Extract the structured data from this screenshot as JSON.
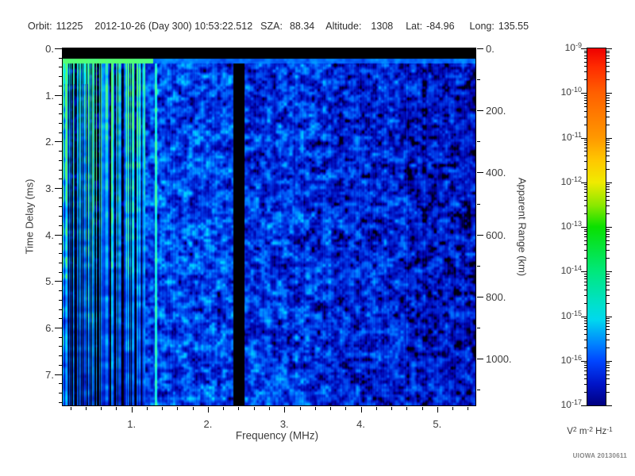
{
  "header": {
    "fields": [
      {
        "label": "Orbit:",
        "value": "11225"
      },
      {
        "label": "",
        "value": "2012-10-26 (Day 300) 10:53:22.512"
      },
      {
        "label": "SZA:",
        "value": "88.34"
      },
      {
        "label": "Altitude:",
        "value": "1308"
      },
      {
        "label": "Lat:",
        "value": "-84.96"
      },
      {
        "label": "Long:",
        "value": "135.55"
      }
    ]
  },
  "credit": "UIOWA 20130611",
  "chart_data": {
    "type": "heatmap",
    "title": "",
    "xlabel": "Frequency (MHz)",
    "ylabel": "Time Delay (ms)",
    "x_axis": {
      "label": "Frequency (MHz)",
      "min_mhz": 0.1,
      "max_mhz": 5.5,
      "major_ticks": [
        {
          "value": 1,
          "label": "1."
        },
        {
          "value": 2,
          "label": "2."
        },
        {
          "value": 3,
          "label": "3."
        },
        {
          "value": 4,
          "label": "4."
        },
        {
          "value": 5,
          "label": "5."
        }
      ],
      "minor_step_mhz": 0.2
    },
    "y_left": {
      "label": "Time Delay (ms)",
      "min_ms": 0,
      "max_ms": 7.67,
      "major_ticks": [
        {
          "value": 0,
          "label": "0."
        },
        {
          "value": 1,
          "label": "1."
        },
        {
          "value": 2,
          "label": "2."
        },
        {
          "value": 3,
          "label": "3."
        },
        {
          "value": 4,
          "label": "4."
        },
        {
          "value": 5,
          "label": "5."
        },
        {
          "value": 6,
          "label": "6."
        },
        {
          "value": 7,
          "label": "7."
        }
      ],
      "minor_step_ms": 0.2
    },
    "y_right": {
      "label": "Apparent Range (km)",
      "km_per_ms": 150,
      "max_km": 1150,
      "major_ticks": [
        {
          "value": 0,
          "label": "0."
        },
        {
          "value": 200,
          "label": "200."
        },
        {
          "value": 400,
          "label": "400."
        },
        {
          "value": 600,
          "label": "600."
        },
        {
          "value": 800,
          "label": "800."
        },
        {
          "value": 1000,
          "label": "1000."
        }
      ],
      "minor_step_km": 100
    },
    "colorbar": {
      "scale": "log",
      "top_exponent": -9,
      "bottom_exponent": -17,
      "ticks": [
        {
          "base": "10",
          "exp": "-9"
        },
        {
          "base": "10",
          "exp": "-10"
        },
        {
          "base": "10",
          "exp": "-11"
        },
        {
          "base": "10",
          "exp": "-12"
        },
        {
          "base": "10",
          "exp": "-13"
        },
        {
          "base": "10",
          "exp": "-14"
        },
        {
          "base": "10",
          "exp": "-15"
        },
        {
          "base": "10",
          "exp": "-16"
        },
        {
          "base": "10",
          "exp": "-17"
        }
      ],
      "unit_parts": [
        {
          "t": "V"
        },
        {
          "t": "2",
          "sup": true
        },
        {
          "t": " m"
        },
        {
          "t": "-2",
          "sup": true
        },
        {
          "t": " Hz"
        },
        {
          "t": "-1",
          "sup": true
        }
      ],
      "gradient_stops": [
        {
          "pos": 0.0,
          "color": "#ee0000"
        },
        {
          "pos": 0.05,
          "color": "#ff2a00"
        },
        {
          "pos": 0.125,
          "color": "#ff6000"
        },
        {
          "pos": 0.25,
          "color": "#ff9800"
        },
        {
          "pos": 0.315,
          "color": "#ffc800"
        },
        {
          "pos": 0.375,
          "color": "#f0ea00"
        },
        {
          "pos": 0.44,
          "color": "#8ae800"
        },
        {
          "pos": 0.5,
          "color": "#0ae000"
        },
        {
          "pos": 0.625,
          "color": "#00e87c"
        },
        {
          "pos": 0.72,
          "color": "#00e0ce"
        },
        {
          "pos": 0.76,
          "color": "#00d8ee"
        },
        {
          "pos": 0.83,
          "color": "#0080ff"
        },
        {
          "pos": 0.875,
          "color": "#0046ff"
        },
        {
          "pos": 0.94,
          "color": "#0014c8"
        },
        {
          "pos": 1.0,
          "color": "#000080"
        }
      ]
    },
    "spectrogram": {
      "seed": 20130611,
      "freq_min": 0.1,
      "freq_max": 5.5,
      "noise_cells": [
        7,
        3.5
      ],
      "colormap": [
        {
          "v": 0.0,
          "c": "#000000"
        },
        {
          "v": 0.14,
          "c": "#000018"
        },
        {
          "v": 0.24,
          "c": "#0000a8"
        },
        {
          "v": 0.4,
          "c": "#0030e0"
        },
        {
          "v": 0.56,
          "c": "#0070ff"
        },
        {
          "v": 0.7,
          "c": "#00b2ff"
        },
        {
          "v": 0.82,
          "c": "#00e4ff"
        },
        {
          "v": 0.92,
          "c": "#3dffa8"
        },
        {
          "v": 1.0,
          "c": "#5aff66"
        }
      ],
      "top_black_rows": 13,
      "bright_band": {
        "rows": [
          13,
          19
        ],
        "green_f_max": 1.28,
        "green_v": 0.96,
        "blue_base": 0.4,
        "blue_amp": 0.3
      },
      "stripes": {
        "f_max": 1.18,
        "gap_prob": 0.25,
        "base": 0.2,
        "amp": 1.05,
        "fade_bottom": 0.5,
        "top_green": {
          "f_max": 0.58,
          "t_frac_max": 0.1,
          "v": 0.92
        }
      },
      "regions": [
        {
          "f0": 1.18,
          "f1": 2.33,
          "base": 0.14,
          "amp": 0.72
        },
        {
          "f0": 2.47,
          "f1": 3.6,
          "base": 0.12,
          "amp": 0.68
        },
        {
          "f0": 3.6,
          "f1": 4.6,
          "base": 0.08,
          "amp": 0.64
        },
        {
          "f0": 4.6,
          "f1": 5.5,
          "base": 0.05,
          "amp": 0.6
        }
      ],
      "black_band": {
        "f0": 2.33,
        "f1": 2.47,
        "dot_threshold": 0.95,
        "dot_v": 0.6
      },
      "cyan_line": {
        "f0": 1.295,
        "f1": 1.33,
        "v_base": 0.78,
        "v_amp": 0.2
      }
    }
  }
}
